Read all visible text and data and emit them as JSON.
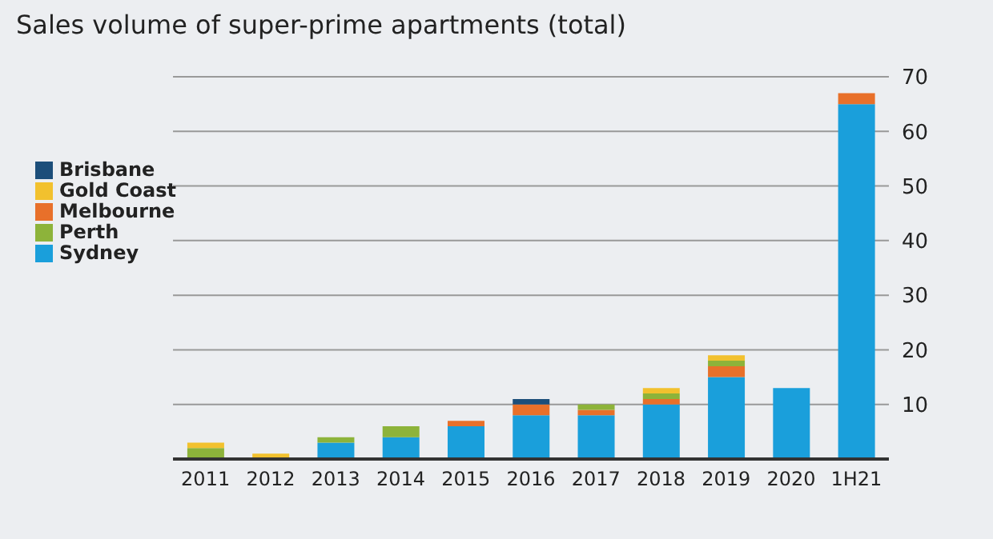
{
  "chart_data": {
    "type": "bar",
    "title": "Sales volume of super-prime apartments (total)",
    "categories": [
      "2011",
      "2012",
      "2013",
      "2014",
      "2015",
      "2016",
      "2017",
      "2018",
      "2019",
      "2020",
      "1H21"
    ],
    "stacked": true,
    "series": [
      {
        "name": "Sydney",
        "color": "#1a9fdb",
        "values": [
          0,
          0,
          3,
          4,
          6,
          8,
          8,
          10,
          15,
          13,
          65
        ]
      },
      {
        "name": "Melbourne",
        "color": "#e8702a",
        "values": [
          0,
          0,
          0,
          0,
          1,
          2,
          1,
          1,
          2,
          0,
          2
        ]
      },
      {
        "name": "Brisbane",
        "color": "#1c4e7a",
        "values": [
          0,
          0,
          0,
          0,
          0,
          1,
          0,
          0,
          0,
          0,
          0
        ]
      },
      {
        "name": "Perth",
        "color": "#8db33a",
        "values": [
          2,
          0,
          1,
          2,
          0,
          0,
          1,
          1,
          1,
          0,
          0
        ]
      },
      {
        "name": "Gold Coast",
        "color": "#f2c12e",
        "values": [
          1,
          1,
          0,
          0,
          0,
          0,
          0,
          1,
          1,
          0,
          0
        ]
      }
    ],
    "ylim": [
      0,
      70
    ],
    "yticks": [
      10,
      20,
      30,
      40,
      50,
      60,
      70
    ],
    "grid": "y",
    "legend": "top left"
  }
}
